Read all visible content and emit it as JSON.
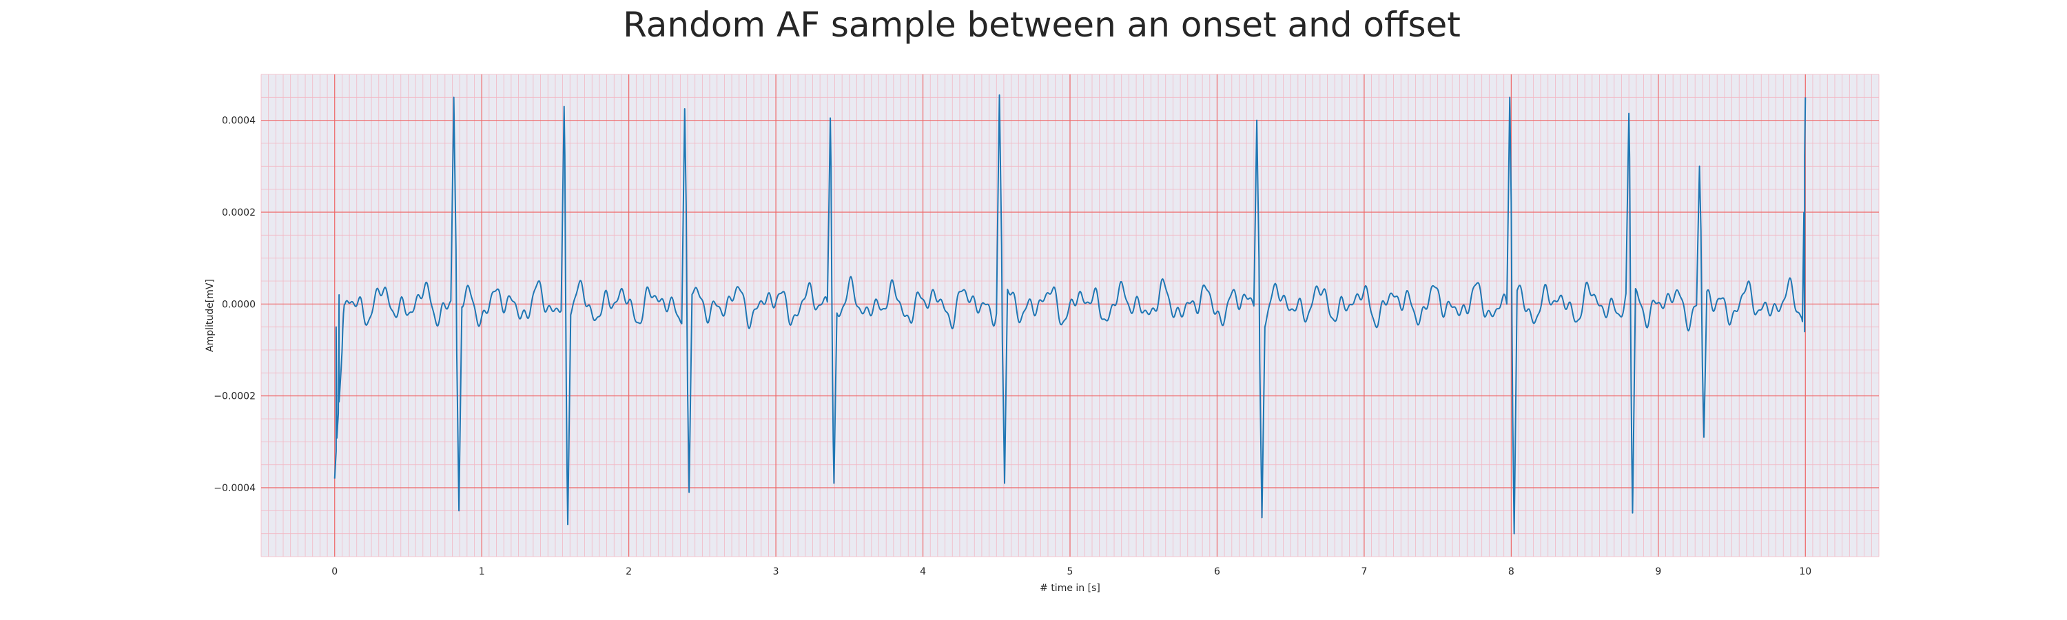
{
  "chart_data": {
    "type": "line",
    "title": "Random AF sample between an onset and offset",
    "xlabel": "# time in [s]",
    "ylabel": "Amplitude[mV]",
    "xlim": [
      -0.5,
      10.5
    ],
    "ylim": [
      -0.00055,
      0.0005
    ],
    "xticks": [
      0,
      1,
      2,
      3,
      4,
      5,
      6,
      7,
      8,
      9,
      10
    ],
    "xtick_labels": [
      "0",
      "1",
      "2",
      "3",
      "4",
      "5",
      "6",
      "7",
      "8",
      "9",
      "10"
    ],
    "yticks": [
      -0.0004,
      -0.0002,
      0.0,
      0.0002,
      0.0004
    ],
    "ytick_labels": [
      "−0.0004",
      "−0.0002",
      "0.0000",
      "0.0002",
      "0.0004"
    ],
    "grid": {
      "major": true,
      "minor": true
    },
    "colors": {
      "background": "#eaeaf2",
      "major_grid": "#ee6666",
      "minor_grid": "#f2b8c4",
      "line": "#1f77b4"
    },
    "series": [
      {
        "x": [
          0,
          0.01,
          0.03,
          0.07,
          0.81,
          0.845,
          1.56,
          1.585,
          2.38,
          2.41,
          3.37,
          3.395,
          4.52,
          4.555,
          6.27,
          6.305,
          7.99,
          8.02,
          8.8,
          8.825,
          9.28,
          9.31,
          9.995,
          10.0
        ],
        "y": [
          -0.00038,
          -5e-05,
          2e-05,
          0.0,
          0.00045,
          -0.00045,
          0.00043,
          -0.00048,
          0.000425,
          -0.00041,
          0.000405,
          -0.00039,
          0.000455,
          -0.00039,
          0.0004,
          -0.000465,
          0.00045,
          -0.0005,
          0.000415,
          -0.000455,
          0.0003,
          -0.00029,
          -6e-05,
          0.00045
        ],
        "note_type": "ECG trace; QRS spikes at listed points, baseline ~0 with noise"
      }
    ]
  }
}
